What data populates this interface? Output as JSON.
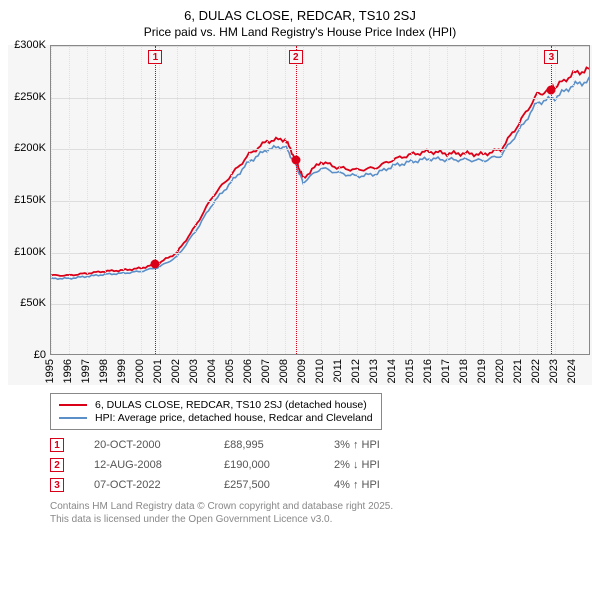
{
  "title": "6, DULAS CLOSE, REDCAR, TS10 2SJ",
  "subtitle": "Price paid vs. HM Land Registry's House Price Index (HPI)",
  "chart": {
    "type": "line",
    "background_color": "#f7f6f6",
    "grid_color": "#dddddd",
    "border_color": "#888888",
    "x_years": [
      1995,
      1996,
      1997,
      1998,
      1999,
      2000,
      2001,
      2002,
      2003,
      2004,
      2005,
      2006,
      2007,
      2008,
      2009,
      2010,
      2011,
      2012,
      2013,
      2014,
      2015,
      2016,
      2017,
      2018,
      2019,
      2020,
      2021,
      2022,
      2023,
      2024
    ],
    "x_range": [
      1995,
      2025
    ],
    "y_ticks": [
      0,
      50000,
      100000,
      150000,
      200000,
      250000,
      300000
    ],
    "y_tick_labels": [
      "£0",
      "£50K",
      "£100K",
      "£150K",
      "£200K",
      "£250K",
      "£300K"
    ],
    "y_range": [
      0,
      300000
    ],
    "series": [
      {
        "name": "6, DULAS CLOSE, REDCAR, TS10 2SJ (detached house)",
        "color": "#d90018",
        "width": 1.8,
        "years": [
          1995,
          1996,
          1997,
          1998,
          1999,
          2000,
          2001,
          2002,
          2003,
          2004,
          2005,
          2006,
          2007,
          2008,
          2008.6,
          2009,
          2010,
          2011,
          2012,
          2013,
          2014,
          2015,
          2016,
          2017,
          2018,
          2019,
          2020,
          2021,
          2022,
          2022.8,
          2023,
          2024,
          2025
        ],
        "values": [
          78000,
          78000,
          80000,
          82000,
          83000,
          85000,
          90000,
          100000,
          125000,
          155000,
          175000,
          195000,
          208000,
          210000,
          190000,
          172000,
          188000,
          182000,
          180000,
          182000,
          190000,
          195000,
          198000,
          196000,
          196000,
          195000,
          200000,
          225000,
          253000,
          257500,
          260000,
          273000,
          278000
        ]
      },
      {
        "name": "HPI: Average price, detached house, Redcar and Cleveland",
        "color": "#5a8fc8",
        "width": 1.6,
        "years": [
          1995,
          1996,
          1997,
          1998,
          1999,
          2000,
          2001,
          2002,
          2003,
          2004,
          2005,
          2006,
          2007,
          2008,
          2008.6,
          2009,
          2010,
          2011,
          2012,
          2013,
          2014,
          2015,
          2016,
          2017,
          2018,
          2019,
          2020,
          2021,
          2022,
          2023,
          2024,
          2025
        ],
        "values": [
          75000,
          75000,
          77000,
          79000,
          80000,
          82000,
          86000,
          96000,
          120000,
          148000,
          168000,
          188000,
          200000,
          203000,
          185000,
          168000,
          182000,
          177000,
          174000,
          176000,
          184000,
          188000,
          191000,
          190000,
          190000,
          189000,
          194000,
          218000,
          245000,
          250000,
          262000,
          267000
        ]
      }
    ],
    "markers": [
      {
        "num": "1",
        "year": 2000.8,
        "value": 88995,
        "color": "#d90018"
      },
      {
        "num": "2",
        "year": 2008.6,
        "value": 190000,
        "color": "#d90018"
      },
      {
        "num": "3",
        "year": 2022.8,
        "value": 257500,
        "color": "#d90018"
      }
    ],
    "tick_fontsize": 11
  },
  "legend": {
    "items": [
      {
        "color": "#d90018",
        "label": "6, DULAS CLOSE, REDCAR, TS10 2SJ (detached house)"
      },
      {
        "color": "#5a8fc8",
        "label": "HPI: Average price, detached house, Redcar and Cleveland"
      }
    ]
  },
  "sales": [
    {
      "num": "1",
      "color": "#d90018",
      "date": "20-OCT-2000",
      "price": "£88,995",
      "diff": "3%",
      "arrow": "↑",
      "suffix": "HPI"
    },
    {
      "num": "2",
      "color": "#d90018",
      "date": "12-AUG-2008",
      "price": "£190,000",
      "diff": "2%",
      "arrow": "↓",
      "suffix": "HPI"
    },
    {
      "num": "3",
      "color": "#d90018",
      "date": "07-OCT-2022",
      "price": "£257,500",
      "diff": "4%",
      "arrow": "↑",
      "suffix": "HPI"
    }
  ],
  "attribution": {
    "line1": "Contains HM Land Registry data © Crown copyright and database right 2025.",
    "line2": "This data is licensed under the Open Government Licence v3.0."
  }
}
